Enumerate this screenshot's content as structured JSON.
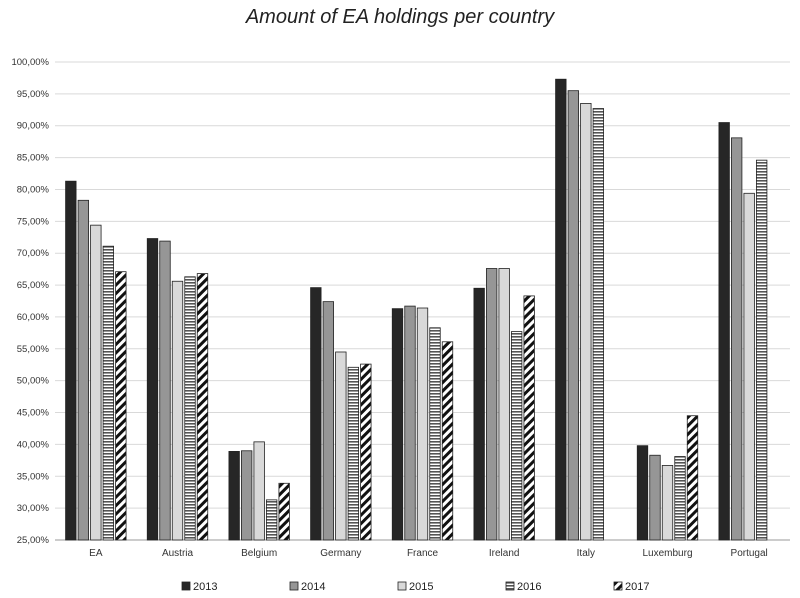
{
  "chart_data": {
    "type": "bar",
    "title": "Amount of EA holdings per country",
    "xlabel": "",
    "ylabel": "",
    "ylim": [
      0.25,
      1.0
    ],
    "y_ticks": [
      "25,00%",
      "30,00%",
      "35,00%",
      "40,00%",
      "45,00%",
      "50,00%",
      "55,00%",
      "60,00%",
      "65,00%",
      "70,00%",
      "75,00%",
      "80,00%",
      "85,00%",
      "90,00%",
      "95,00%",
      "100,00%"
    ],
    "categories": [
      "EA",
      "Austria",
      "Belgium",
      "Germany",
      "France",
      "Ireland",
      "Italy",
      "Luxemburg",
      "Portugal"
    ],
    "grid": true,
    "legend_position": "bottom",
    "series": [
      {
        "name": "2013",
        "color": "#262626",
        "pattern": "solid-dark",
        "values": [
          0.813,
          0.723,
          0.389,
          0.646,
          0.613,
          0.645,
          0.973,
          0.398,
          0.905
        ]
      },
      {
        "name": "2014",
        "color": "#969696",
        "pattern": "solid-gray",
        "values": [
          0.783,
          0.719,
          0.39,
          0.624,
          0.617,
          0.676,
          0.955,
          0.383,
          0.881
        ]
      },
      {
        "name": "2015",
        "color": "#d9d9d9",
        "pattern": "solid-light",
        "values": [
          0.744,
          0.656,
          0.404,
          0.545,
          0.614,
          0.676,
          0.935,
          0.367,
          0.794
        ]
      },
      {
        "name": "2016",
        "color": "#777777",
        "pattern": "horizontal-stripes",
        "values": [
          0.711,
          0.663,
          0.313,
          0.521,
          0.583,
          0.577,
          0.927,
          0.381,
          0.846
        ]
      },
      {
        "name": "2017",
        "color": "#111111",
        "pattern": "diagonal-stripes",
        "values": [
          0.671,
          0.668,
          0.339,
          0.526,
          0.561,
          0.633,
          null,
          0.445,
          null
        ]
      }
    ]
  }
}
